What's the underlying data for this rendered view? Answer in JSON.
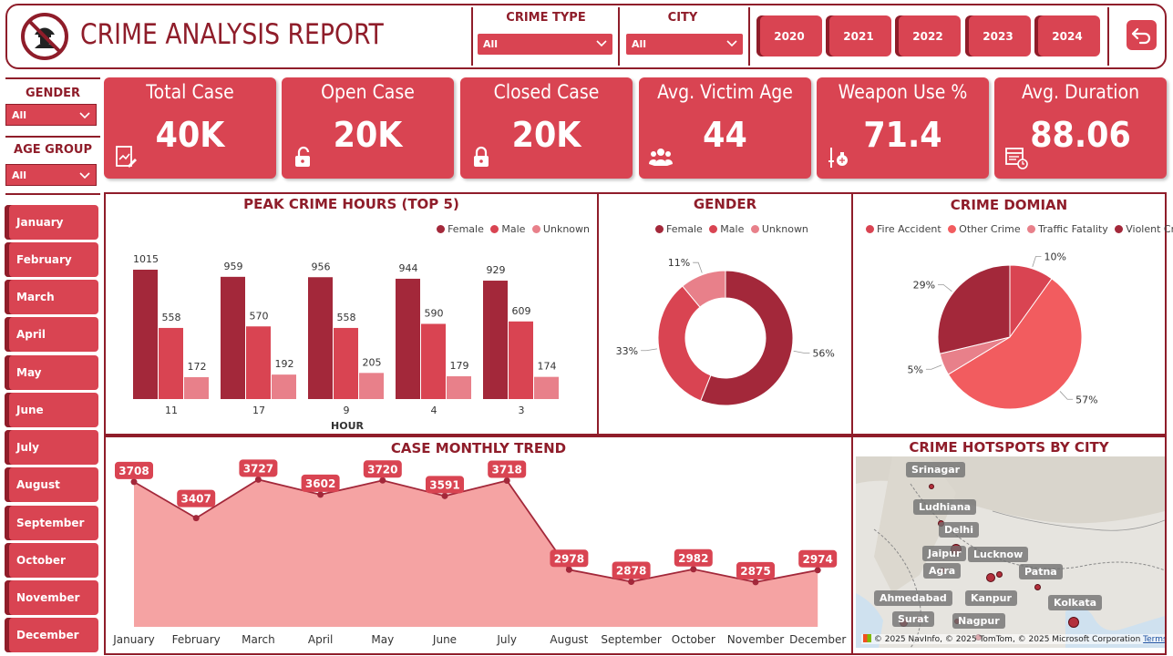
{
  "header": {
    "title": "CRIME ANALYSIS REPORT",
    "crime_type_label": "CRIME TYPE",
    "crime_type_value": "All",
    "city_label": "CITY",
    "city_value": "All",
    "years": [
      "2020",
      "2021",
      "2022",
      "2023",
      "2024"
    ],
    "back_icon": "back-arrow-icon"
  },
  "filters": {
    "gender_label": "GENDER",
    "gender_value": "All",
    "age_group_label": "AGE GROUP",
    "age_group_value": "All"
  },
  "months": [
    "January",
    "February",
    "March",
    "April",
    "May",
    "June",
    "July",
    "August",
    "September",
    "October",
    "November",
    "December"
  ],
  "kpis": [
    {
      "title": "Total Case",
      "value": "40K",
      "icon": "report-icon"
    },
    {
      "title": "Open Case",
      "value": "20K",
      "icon": "unlock-icon"
    },
    {
      "title": "Closed Case",
      "value": "20K",
      "icon": "lock-icon"
    },
    {
      "title": "Avg. Victim Age",
      "value": "44",
      "icon": "people-icon"
    },
    {
      "title": "Weapon Use %",
      "value": "71.4",
      "icon": "weapon-icon"
    },
    {
      "title": "Avg. Duration",
      "value": "88.06",
      "icon": "calendar-clock-icon"
    }
  ],
  "colors": {
    "accent": "#d94452",
    "dark": "#8f1d2a",
    "female": "#a3283a",
    "male": "#d94452",
    "unknown": "#e8808a",
    "fire_accident": "#d94452",
    "other_crime": "#f25c5f",
    "traffic_fatality": "#e8808a",
    "violent_crime": "#a3283a",
    "trend_fill": "#f5a3a3"
  },
  "chart_data": [
    {
      "type": "bar",
      "title": "PEAK CRIME HOURS (TOP 5)",
      "xlabel": "HOUR",
      "categories": [
        "11",
        "17",
        "9",
        "4",
        "3"
      ],
      "series": [
        {
          "name": "Female",
          "values": [
            1015,
            959,
            956,
            944,
            929
          ]
        },
        {
          "name": "Male",
          "values": [
            558,
            570,
            558,
            590,
            609
          ]
        },
        {
          "name": "Unknown",
          "values": [
            172,
            192,
            205,
            179,
            174
          ]
        }
      ],
      "legend": "top-right",
      "grid": false
    },
    {
      "type": "pie",
      "donut": true,
      "title": "GENDER",
      "labels": [
        "Female",
        "Male",
        "Unknown"
      ],
      "values": [
        56,
        33,
        11
      ],
      "value_labels": [
        "56%",
        "33%",
        "11%"
      ],
      "legend": "top"
    },
    {
      "type": "pie",
      "title": "CRIME DOMIAN",
      "legend_labels": [
        "Fire Accident",
        "Other Crime",
        "Traffic Fatality",
        "Violent Crime"
      ],
      "slices": [
        {
          "label": "Fire Accident",
          "value": 10,
          "text": "10%"
        },
        {
          "label": "Other Crime",
          "value": 57,
          "text": "57%"
        },
        {
          "label": "Traffic Fatality",
          "value": 5,
          "text": "5%"
        },
        {
          "label": "Violent Crime",
          "value": 29,
          "text": "29%"
        }
      ],
      "legend": "top"
    },
    {
      "type": "area",
      "title": "CASE MONTHLY TREND",
      "categories": [
        "January",
        "February",
        "March",
        "April",
        "May",
        "June",
        "July",
        "August",
        "September",
        "October",
        "November",
        "December"
      ],
      "values": [
        3708,
        3407,
        3727,
        3602,
        3720,
        3591,
        3718,
        2978,
        2878,
        2982,
        2875,
        2974
      ],
      "grid": false
    }
  ],
  "map": {
    "title": "CRIME HOTSPOTS BY CITY",
    "cities": [
      "Srinagar",
      "Ludhiana",
      "Delhi",
      "Jaipur",
      "Lucknow",
      "Agra",
      "Patna",
      "Ahmedabad",
      "Kanpur",
      "Kolkata",
      "Surat",
      "Nagpur"
    ],
    "attribution": "© 2025 NavInfo, © 2025 TomTom, © 2025 Microsoft Corporation",
    "terms": "Terms"
  }
}
